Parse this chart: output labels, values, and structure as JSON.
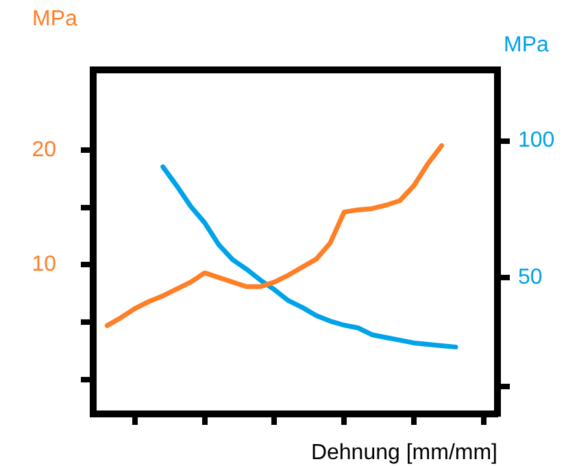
{
  "chart_data": {
    "type": "line",
    "xlabel": "Dehnung [mm/mm]",
    "ylabel": "MPa",
    "y2label": "MPa",
    "categories": [
      null,
      null,
      null,
      null,
      null,
      null,
      null,
      null,
      null,
      null,
      null,
      null,
      null,
      null,
      null,
      null,
      null,
      null,
      null,
      null,
      null,
      null,
      null,
      null,
      null,
      null,
      null,
      null,
      null,
      null
    ],
    "series": [
      {
        "color": "#ff7f27",
        "axis": "y",
        "values": [
          null,
          4.7,
          5.4,
          6.2,
          6.8,
          7.3,
          7.9,
          8.5,
          9.3,
          8.9,
          8.5,
          8.1,
          8.1,
          8.5,
          9.1,
          9.8,
          10.5,
          11.9,
          14.6,
          14.8,
          14.9,
          15.2,
          15.6,
          16.9,
          18.8,
          20.4,
          null,
          null,
          null,
          null
        ]
      },
      {
        "color": "#00a2e8",
        "axis": "y2",
        "values": [
          null,
          null,
          null,
          null,
          null,
          90.5,
          83.5,
          76,
          70,
          62,
          56.5,
          53,
          49,
          45.5,
          41.5,
          39,
          36,
          34,
          32.5,
          31.5,
          29,
          28,
          27,
          26,
          25.5,
          25,
          24.5,
          null,
          null,
          null
        ]
      }
    ],
    "ylim": [
      -3,
      27
    ],
    "yticks": [
      {
        "value": 0,
        "label": null
      },
      {
        "value": 5,
        "label": null
      },
      10,
      {
        "value": 15,
        "label": null
      },
      20
    ],
    "y2lim": [
      0,
      126
    ],
    "y2ticks": [
      {
        "value": 10,
        "label": null
      },
      50,
      100
    ],
    "tick_labels": "y",
    "grid": false,
    "legend": false,
    "marker": "none",
    "line_style": "solid"
  }
}
